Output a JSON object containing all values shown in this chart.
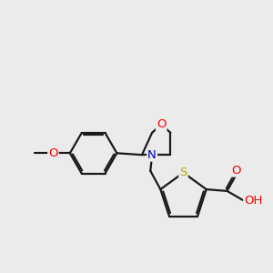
{
  "background_color": "#ebebeb",
  "bond_color": "#1a1a1a",
  "bond_width": 1.6,
  "atom_colors": {
    "O": "#ff0000",
    "N": "#0000cc",
    "S": "#bbaa00",
    "C": "#1a1a1a",
    "H": "#777777"
  },
  "font_size_atom": 9.5,
  "font_size_methyl": 8.0
}
